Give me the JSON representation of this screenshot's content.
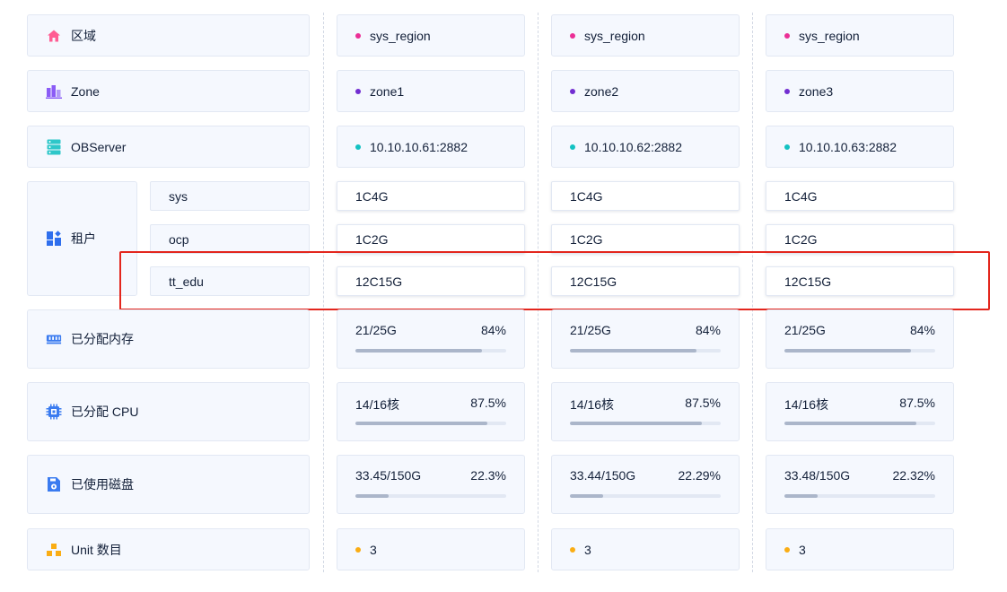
{
  "rows": {
    "region": {
      "label": "区域",
      "icon": "home-icon",
      "icon_color": "#ff5c93",
      "dot_color": "#eb2f96",
      "values": [
        "sys_region",
        "sys_region",
        "sys_region"
      ]
    },
    "zone": {
      "label": "Zone",
      "icon": "bar-chart-icon",
      "icon_color": "#8b5cf6",
      "dot_color": "#722ed1",
      "values": [
        "zone1",
        "zone2",
        "zone3"
      ]
    },
    "observer": {
      "label": "OBServer",
      "icon": "server-icon",
      "icon_color": "#2ec7c9",
      "dot_color": "#13c2c2",
      "values": [
        "10.10.10.61:2882",
        "10.10.10.62:2882",
        "10.10.10.63:2882"
      ]
    },
    "tenant": {
      "label": "租户",
      "icon": "dashboard-icon",
      "icon_color": "#2f6fed",
      "tenants": [
        {
          "name": "sys",
          "specs": [
            "1C4G",
            "1C4G",
            "1C4G"
          ]
        },
        {
          "name": "ocp",
          "specs": [
            "1C2G",
            "1C2G",
            "1C2G"
          ]
        },
        {
          "name": "tt_edu",
          "specs": [
            "12C15G",
            "12C15G",
            "12C15G"
          ]
        }
      ]
    },
    "memory": {
      "label": "已分配内存",
      "icon": "memory-icon",
      "icon_color": "#3a7bf0",
      "values": [
        {
          "used": "21/25G",
          "percent": "84%",
          "ratio": 0.84
        },
        {
          "used": "21/25G",
          "percent": "84%",
          "ratio": 0.84
        },
        {
          "used": "21/25G",
          "percent": "84%",
          "ratio": 0.84
        }
      ]
    },
    "cpu": {
      "label": "已分配 CPU",
      "icon": "cpu-icon",
      "icon_color": "#3a7bf0",
      "values": [
        {
          "used": "14/16核",
          "percent": "87.5%",
          "ratio": 0.875
        },
        {
          "used": "14/16核",
          "percent": "87.5%",
          "ratio": 0.875
        },
        {
          "used": "14/16核",
          "percent": "87.5%",
          "ratio": 0.875
        }
      ]
    },
    "disk": {
      "label": "已使用磁盘",
      "icon": "disk-icon",
      "icon_color": "#3a7bf0",
      "values": [
        {
          "used": "33.45/150G",
          "percent": "22.3%",
          "ratio": 0.223
        },
        {
          "used": "33.44/150G",
          "percent": "22.29%",
          "ratio": 0.2229
        },
        {
          "used": "33.48/150G",
          "percent": "22.32%",
          "ratio": 0.2232
        }
      ]
    },
    "unit": {
      "label": "Unit 数目",
      "icon": "units-icon",
      "icon_color": "#faad14",
      "dot_color": "#faad14",
      "values": [
        "3",
        "3",
        "3"
      ]
    }
  },
  "highlight_color": "#e3261d"
}
